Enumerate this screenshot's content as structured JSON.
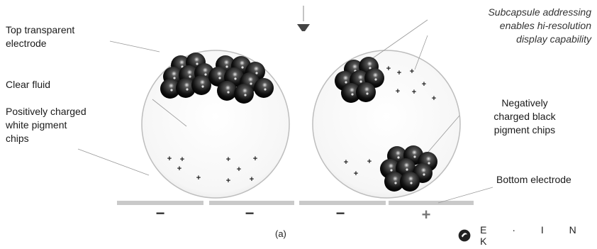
{
  "labels": {
    "top_electrode": "Top transparent\nelectrode",
    "clear_fluid": "Clear fluid",
    "white_chips": "Positively charged\nwhite pigment\nchips",
    "subcapsule": "Subcapsule addressing\nenables hi-resolution\ndisplay capability",
    "black_chips": "Negatively\ncharged black\npigment chips",
    "bottom_electrode": "Bottom electrode"
  },
  "electrode_signs": [
    "−",
    "−",
    "−",
    "+"
  ],
  "plus_sign": "+",
  "caption": "(a)",
  "logo": "E · I N K",
  "colors": {
    "black_chip": "#111111",
    "capsule_fill": "#ffffff",
    "capsule_stroke": "#bbbbbb",
    "electrode": "#c8c8c8"
  }
}
